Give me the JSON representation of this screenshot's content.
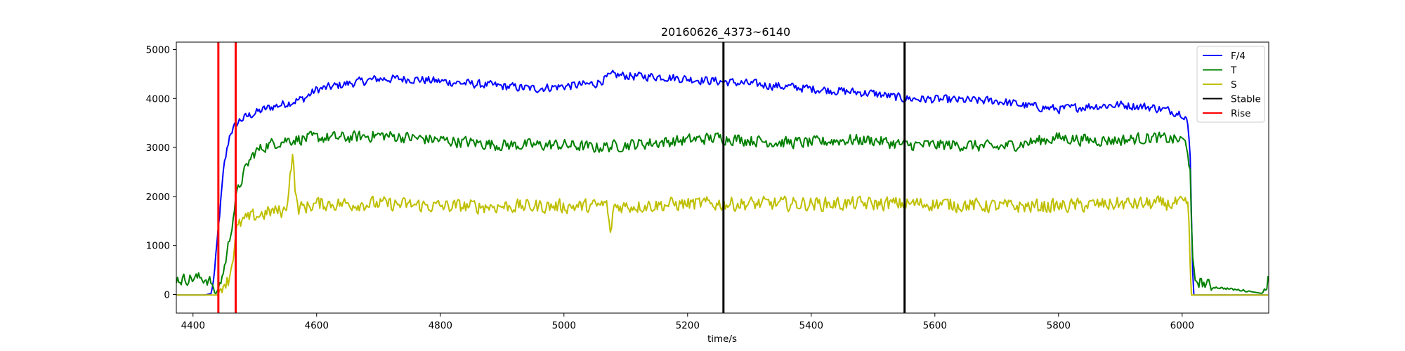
{
  "chart_data": {
    "type": "line",
    "title": "20160626_4373~6140",
    "xlabel": "time/s",
    "ylabel": "",
    "xlim": [
      4373,
      6140
    ],
    "ylim": [
      -380,
      5150
    ],
    "xticks": [
      4400,
      4600,
      4800,
      5000,
      5200,
      5400,
      5600,
      5800,
      6000
    ],
    "yticks": [
      0,
      1000,
      2000,
      3000,
      4000,
      5000
    ],
    "grid": false,
    "legend_position": "upper right",
    "series": [
      {
        "name": "F/4",
        "color": "#0000ff",
        "noise": 110,
        "points": [
          [
            4373,
            -10
          ],
          [
            4420,
            -10
          ],
          [
            4430,
            20
          ],
          [
            4436,
            600
          ],
          [
            4442,
            1500
          ],
          [
            4450,
            2600
          ],
          [
            4460,
            3300
          ],
          [
            4475,
            3550
          ],
          [
            4490,
            3650
          ],
          [
            4520,
            3800
          ],
          [
            4550,
            3900
          ],
          [
            4580,
            4000
          ],
          [
            4600,
            4180
          ],
          [
            4650,
            4300
          ],
          [
            4700,
            4400
          ],
          [
            4750,
            4400
          ],
          [
            4800,
            4350
          ],
          [
            4850,
            4300
          ],
          [
            4900,
            4250
          ],
          [
            4950,
            4200
          ],
          [
            5000,
            4250
          ],
          [
            5050,
            4300
          ],
          [
            5080,
            4480
          ],
          [
            5120,
            4450
          ],
          [
            5150,
            4450
          ],
          [
            5200,
            4400
          ],
          [
            5250,
            4350
          ],
          [
            5300,
            4300
          ],
          [
            5350,
            4250
          ],
          [
            5400,
            4200
          ],
          [
            5450,
            4150
          ],
          [
            5500,
            4100
          ],
          [
            5550,
            4000
          ],
          [
            5600,
            3980
          ],
          [
            5650,
            3960
          ],
          [
            5700,
            3950
          ],
          [
            5750,
            3850
          ],
          [
            5800,
            3780
          ],
          [
            5850,
            3840
          ],
          [
            5900,
            3870
          ],
          [
            5950,
            3820
          ],
          [
            6000,
            3700
          ],
          [
            6008,
            3600
          ],
          [
            6013,
            2800
          ],
          [
            6016,
            1000
          ],
          [
            6018,
            -10
          ],
          [
            6140,
            -10
          ]
        ]
      },
      {
        "name": "T",
        "color": "#008000",
        "noise": 150,
        "points": [
          [
            4373,
            330
          ],
          [
            4380,
            300
          ],
          [
            4390,
            320
          ],
          [
            4410,
            340
          ],
          [
            4420,
            320
          ],
          [
            4430,
            250
          ],
          [
            4436,
            -10
          ],
          [
            4443,
            180
          ],
          [
            4450,
            500
          ],
          [
            4460,
            1200
          ],
          [
            4470,
            2000
          ],
          [
            4480,
            2400
          ],
          [
            4490,
            2700
          ],
          [
            4500,
            2900
          ],
          [
            4520,
            3050
          ],
          [
            4550,
            3150
          ],
          [
            4600,
            3200
          ],
          [
            4650,
            3200
          ],
          [
            4700,
            3250
          ],
          [
            4750,
            3200
          ],
          [
            4800,
            3150
          ],
          [
            4850,
            3100
          ],
          [
            4900,
            3050
          ],
          [
            4950,
            3050
          ],
          [
            5000,
            3050
          ],
          [
            5050,
            3000
          ],
          [
            5100,
            3050
          ],
          [
            5150,
            3100
          ],
          [
            5200,
            3150
          ],
          [
            5250,
            3200
          ],
          [
            5300,
            3150
          ],
          [
            5350,
            3100
          ],
          [
            5400,
            3100
          ],
          [
            5450,
            3150
          ],
          [
            5500,
            3150
          ],
          [
            5550,
            3050
          ],
          [
            5600,
            3050
          ],
          [
            5650,
            3050
          ],
          [
            5700,
            3000
          ],
          [
            5750,
            3100
          ],
          [
            5800,
            3200
          ],
          [
            5850,
            3150
          ],
          [
            5900,
            3150
          ],
          [
            5950,
            3200
          ],
          [
            6000,
            3150
          ],
          [
            6008,
            3050
          ],
          [
            6013,
            2500
          ],
          [
            6016,
            800
          ],
          [
            6020,
            300
          ],
          [
            6050,
            150
          ],
          [
            6100,
            80
          ],
          [
            6130,
            20
          ],
          [
            6140,
            350
          ]
        ]
      },
      {
        "name": "S",
        "color": "#bfbf00",
        "noise": 180,
        "points": [
          [
            4373,
            -10
          ],
          [
            4425,
            -10
          ],
          [
            4440,
            -10
          ],
          [
            4450,
            250
          ],
          [
            4458,
            300
          ],
          [
            4465,
            800
          ],
          [
            4470,
            1300
          ],
          [
            4480,
            1500
          ],
          [
            4500,
            1600
          ],
          [
            4530,
            1700
          ],
          [
            4550,
            1700
          ],
          [
            4555,
            2200
          ],
          [
            4561,
            2900
          ],
          [
            4566,
            2000
          ],
          [
            4570,
            1750
          ],
          [
            4600,
            1850
          ],
          [
            4700,
            1850
          ],
          [
            4800,
            1800
          ],
          [
            4900,
            1800
          ],
          [
            5000,
            1800
          ],
          [
            5050,
            1800
          ],
          [
            5070,
            1850
          ],
          [
            5075,
            1150
          ],
          [
            5080,
            1800
          ],
          [
            5100,
            1800
          ],
          [
            5200,
            1850
          ],
          [
            5300,
            1850
          ],
          [
            5400,
            1850
          ],
          [
            5500,
            1850
          ],
          [
            5600,
            1850
          ],
          [
            5700,
            1800
          ],
          [
            5800,
            1800
          ],
          [
            5900,
            1850
          ],
          [
            6000,
            1850
          ],
          [
            6010,
            1800
          ],
          [
            6012,
            1200
          ],
          [
            6014,
            -10
          ],
          [
            6140,
            -10
          ]
        ]
      },
      {
        "name": "Stable",
        "color": "#000000",
        "vlines": [
          5258,
          5551
        ]
      },
      {
        "name": "Rise",
        "color": "#ff0000",
        "vlines": [
          4441,
          4469
        ]
      }
    ]
  }
}
